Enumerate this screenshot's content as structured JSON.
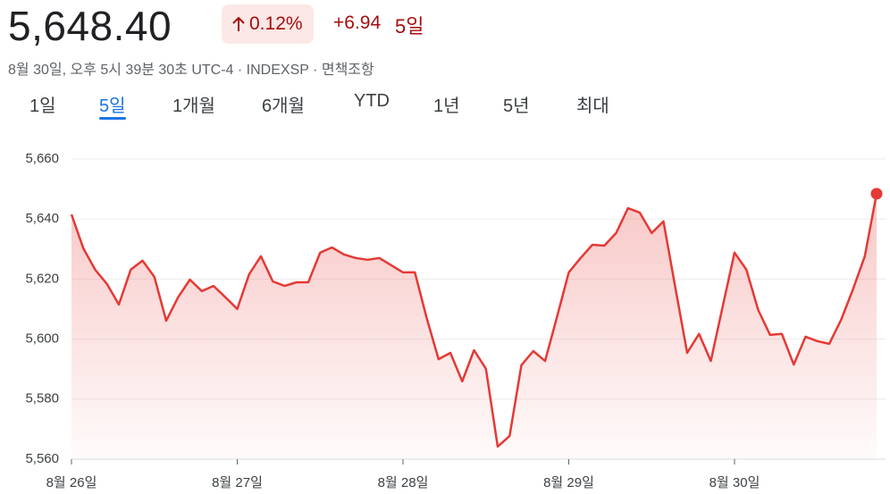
{
  "header": {
    "price": "5,648.40",
    "change_percent": "0.12%",
    "change_absolute": "+6.94",
    "period": "5일",
    "subtitle": "8월 30일, 오후 5시 39분 30초 UTC-4 · INDEXSP · 면책조항"
  },
  "tabs": [
    "1일",
    "5일",
    "1개월",
    "6개월",
    "YTD",
    "1년",
    "5년",
    "최대"
  ],
  "active_tab": 1,
  "chart_data": {
    "type": "line",
    "color": "#e53935",
    "grid": true,
    "x": [
      0,
      1,
      2,
      3,
      4,
      5,
      6,
      7,
      8,
      9,
      10,
      11,
      12,
      13,
      14,
      15,
      16,
      17,
      18,
      19,
      20,
      21,
      22,
      23,
      24,
      25,
      26,
      27,
      28,
      29,
      30,
      31,
      32,
      33,
      34,
      35,
      36,
      37,
      38,
      39,
      40,
      41,
      42,
      43,
      44,
      45,
      46,
      47,
      48,
      49,
      50,
      51,
      52,
      53,
      54,
      55,
      56,
      57,
      58,
      59,
      60,
      61,
      62,
      63,
      64,
      65,
      66,
      67,
      68
    ],
    "values": [
      5641.5,
      5630.2,
      5623.1,
      5618.3,
      5611.5,
      5623.1,
      5626.1,
      5620.7,
      5606.1,
      5613.9,
      5619.8,
      5616.0,
      5617.7,
      5613.9,
      5610.0,
      5621.6,
      5627.6,
      5619.2,
      5617.7,
      5618.9,
      5618.9,
      5628.8,
      5630.5,
      5628.2,
      5627.0,
      5626.4,
      5627.0,
      5624.6,
      5622.2,
      5622.2,
      5607.0,
      5593.3,
      5595.4,
      5585.9,
      5596.3,
      5590.1,
      5564.2,
      5567.7,
      5591.3,
      5596.0,
      5592.7,
      5607.3,
      5622.2,
      5627.0,
      5631.4,
      5631.1,
      5635.3,
      5643.6,
      5642.1,
      5635.3,
      5639.2,
      5617.1,
      5595.4,
      5601.7,
      5592.7,
      5610.9,
      5628.8,
      5623.1,
      5609.7,
      5601.4,
      5601.7,
      5591.5,
      5600.8,
      5599.3,
      5598.4,
      5606.4,
      5616.5,
      5627.6,
      5648.4
    ],
    "xlim": [
      0,
      68
    ],
    "xticks": [
      {
        "value": 0,
        "label": "8월 26일"
      },
      {
        "value": 14,
        "label": "8월 27일"
      },
      {
        "value": 28,
        "label": "8월 28일"
      },
      {
        "value": 42,
        "label": "8월 29일"
      },
      {
        "value": 56,
        "label": "8월 30일"
      }
    ],
    "ylim": [
      5560,
      5668
    ],
    "yticks": [
      {
        "value": 5560,
        "label": "5,560"
      },
      {
        "value": 5580,
        "label": "5,580"
      },
      {
        "value": 5600,
        "label": "5,600"
      },
      {
        "value": 5620,
        "label": "5,620"
      },
      {
        "value": 5640,
        "label": "5,640"
      },
      {
        "value": 5660,
        "label": "5,660"
      }
    ]
  }
}
